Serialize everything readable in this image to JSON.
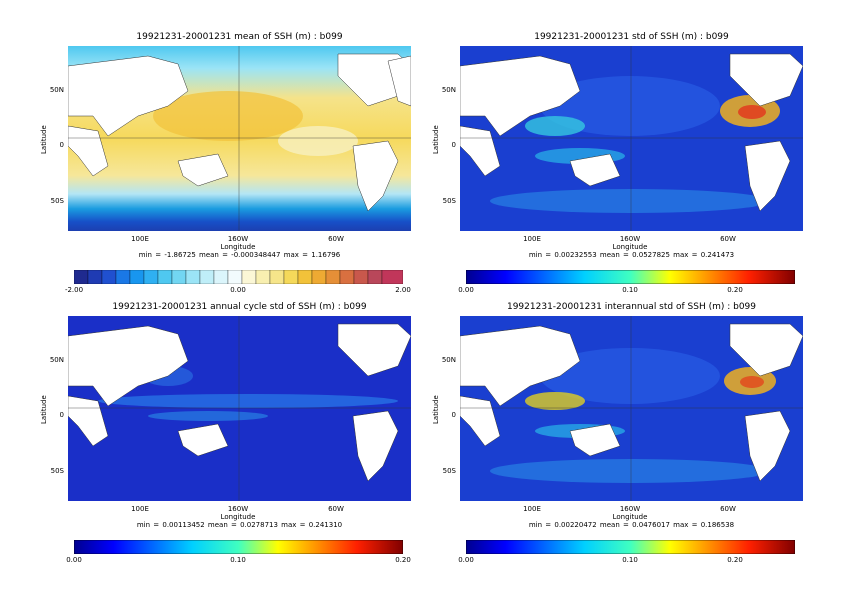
{
  "panels": [
    {
      "title": "19921231-20001231 mean of SSH (m) : b099",
      "ylabel": "Latitude",
      "yticks": [
        "50N",
        "0",
        "50S"
      ],
      "xticks": [
        "100E",
        "160W",
        "60W"
      ],
      "xlabel": "Longitude",
      "stats": "min = -1.86725    mean = -0.000348447    max = 1.16796",
      "colorbar": {
        "ticks": [
          "-2.00",
          "0.00",
          "2.00"
        ],
        "palette": "diverging"
      }
    },
    {
      "title": "19921231-20001231 std of SSH (m) : b099",
      "ylabel": "Latitude",
      "yticks": [
        "50N",
        "0",
        "50S"
      ],
      "xticks": [
        "100E",
        "160W",
        "60W"
      ],
      "xlabel": "Longitude",
      "stats": "min = 0.00232553    mean = 0.0527825    max = 0.241473",
      "colorbar": {
        "ticks": [
          "0.00",
          "0.10",
          "0.20"
        ],
        "palette": "jet"
      }
    },
    {
      "title": "19921231-20001231 annual cycle std of SSH (m) : b099",
      "ylabel": "Latitude",
      "yticks": [
        "50N",
        "0",
        "50S"
      ],
      "xticks": [
        "100E",
        "160W",
        "60W"
      ],
      "xlabel": "Longitude",
      "stats": "min = 0.00113452    mean = 0.0278713    max = 0.241310",
      "colorbar": {
        "ticks": [
          "0.00",
          "0.10",
          "0.20"
        ],
        "palette": "jet"
      }
    },
    {
      "title": "19921231-20001231 interannual std of SSH (m) : b099",
      "ylabel": "Latitude",
      "yticks": [
        "50N",
        "0",
        "50S"
      ],
      "xticks": [
        "100E",
        "160W",
        "60W"
      ],
      "xlabel": "Longitude",
      "stats": "min = 0.00220472    mean = 0.0476017    max = 0.186538",
      "colorbar": {
        "ticks": [
          "0.00",
          "0.10",
          "0.20"
        ],
        "palette": "jet"
      }
    }
  ],
  "colors": {
    "land": "#ffffff",
    "jet_low": "#00008f",
    "jet_high": "#800000"
  }
}
